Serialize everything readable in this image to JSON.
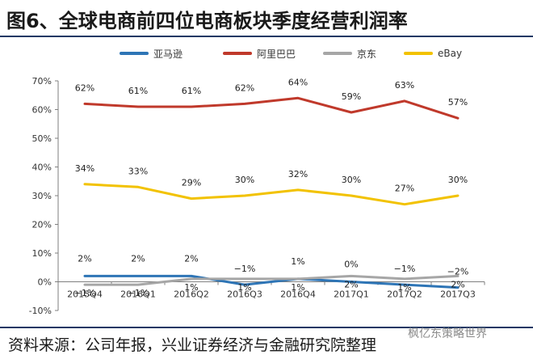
{
  "header": {
    "title": "图6、全球电商前四位电商板块季度经营利润率"
  },
  "footer": {
    "source": "资料来源：公司年报，兴业证券经济与金融研究院整理",
    "watermark": "枫亿东策略世界"
  },
  "legend_position": "top",
  "chart_data": {
    "type": "line",
    "title": "",
    "xlabel": "",
    "ylabel": "",
    "categories": [
      "2015Q4",
      "2016Q1",
      "2016Q2",
      "2016Q3",
      "2016Q4",
      "2017Q1",
      "2017Q2",
      "2017Q3"
    ],
    "ylim": [
      -10,
      70
    ],
    "yticks": [
      -10,
      0,
      10,
      20,
      30,
      40,
      50,
      60,
      70
    ],
    "ytick_suffix": "%",
    "grid": false,
    "legend": "top",
    "series": [
      {
        "name": "亚马逊",
        "color": "#2e75b6",
        "values": [
          2,
          2,
          2,
          -1,
          1,
          0,
          -1,
          -2
        ],
        "labels": [
          "2%",
          "2%",
          "2%",
          "−1%",
          "1%",
          "0%",
          "−1%",
          "−2%"
        ]
      },
      {
        "name": "阿里巴巴",
        "color": "#c0392b",
        "values": [
          62,
          61,
          61,
          62,
          64,
          59,
          63,
          57
        ],
        "labels": [
          "62%",
          "61%",
          "61%",
          "62%",
          "64%",
          "59%",
          "63%",
          "57%"
        ]
      },
      {
        "name": "京东",
        "color": "#a6a6a6",
        "values": [
          -1,
          -1,
          1,
          1,
          1,
          2,
          1,
          2
        ],
        "labels": [
          "−1%",
          "−1%",
          "1%",
          "1%",
          "1%",
          "2%",
          "1%",
          "2%"
        ]
      },
      {
        "name": "eBay",
        "color": "#f2c200",
        "values": [
          34,
          33,
          29,
          30,
          32,
          30,
          27,
          30
        ],
        "labels": [
          "34%",
          "33%",
          "29%",
          "30%",
          "32%",
          "30%",
          "27%",
          "30%"
        ]
      }
    ]
  }
}
